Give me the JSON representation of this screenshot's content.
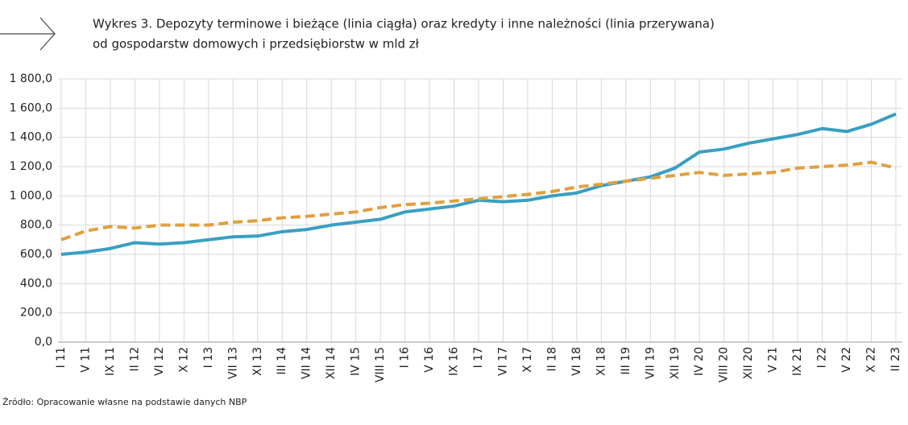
{
  "chart_data": {
    "type": "line",
    "title": "Wykres 3. Depozyty terminowe i bieżące (linia ciągła) oraz kredyty i inne należności (linia przerywana)",
    "subtitle": "od gospodarstw domowych i przedsiębiorstw w mld zł",
    "source": "Źródło: Opracowanie własne na podstawie danych NBP",
    "categories": [
      "I 11",
      "V 11",
      "IX 11",
      "II 12",
      "VI 12",
      "X 12",
      "I 13",
      "VII 13",
      "XI 13",
      "III 14",
      "VII 14",
      "XII 14",
      "IV 15",
      "VIII 15",
      "I 16",
      "V 16",
      "IX 16",
      "I 17",
      "VI 17",
      "X 17",
      "II 18",
      "VI 18",
      "XI 18",
      "III 19",
      "VII 19",
      "XII 19",
      "IV 20",
      "VIII 20",
      "XII 20",
      "V 21",
      "IX 21",
      "I 22",
      "V 22",
      "X 22",
      "II 23"
    ],
    "series": [
      {
        "color": "#3a9fc1",
        "dashed": false,
        "values": [
          600,
          615,
          640,
          680,
          670,
          680,
          700,
          720,
          725,
          755,
          770,
          800,
          820,
          840,
          890,
          910,
          930,
          970,
          960,
          970,
          1000,
          1020,
          1070,
          1100,
          1130,
          1190,
          1300,
          1320,
          1360,
          1390,
          1420,
          1460,
          1440,
          1490,
          1560
        ]
      },
      {
        "color": "#e0a040",
        "dashed": true,
        "values": [
          700,
          760,
          790,
          780,
          800,
          800,
          800,
          820,
          830,
          850,
          860,
          875,
          890,
          920,
          940,
          950,
          965,
          980,
          995,
          1010,
          1030,
          1060,
          1080,
          1100,
          1120,
          1140,
          1160,
          1140,
          1150,
          1160,
          1190,
          1200,
          1210,
          1230,
          1190
        ]
      }
    ],
    "ylim": [
      0,
      1800
    ],
    "yticks": [
      {
        "value": 0,
        "label": "0,0"
      },
      {
        "value": 200,
        "label": "200,0"
      },
      {
        "value": 400,
        "label": "400,0"
      },
      {
        "value": 600,
        "label": "600,0"
      },
      {
        "value": 800,
        "label": "800,0"
      },
      {
        "value": 1000,
        "label": "1 000,0"
      },
      {
        "value": 1200,
        "label": "1 200,0"
      },
      {
        "value": 1400,
        "label": "1 400,0"
      },
      {
        "value": 1600,
        "label": "1 600,0"
      },
      {
        "value": 1800,
        "label": "1 800,0"
      }
    ],
    "grid": true
  }
}
